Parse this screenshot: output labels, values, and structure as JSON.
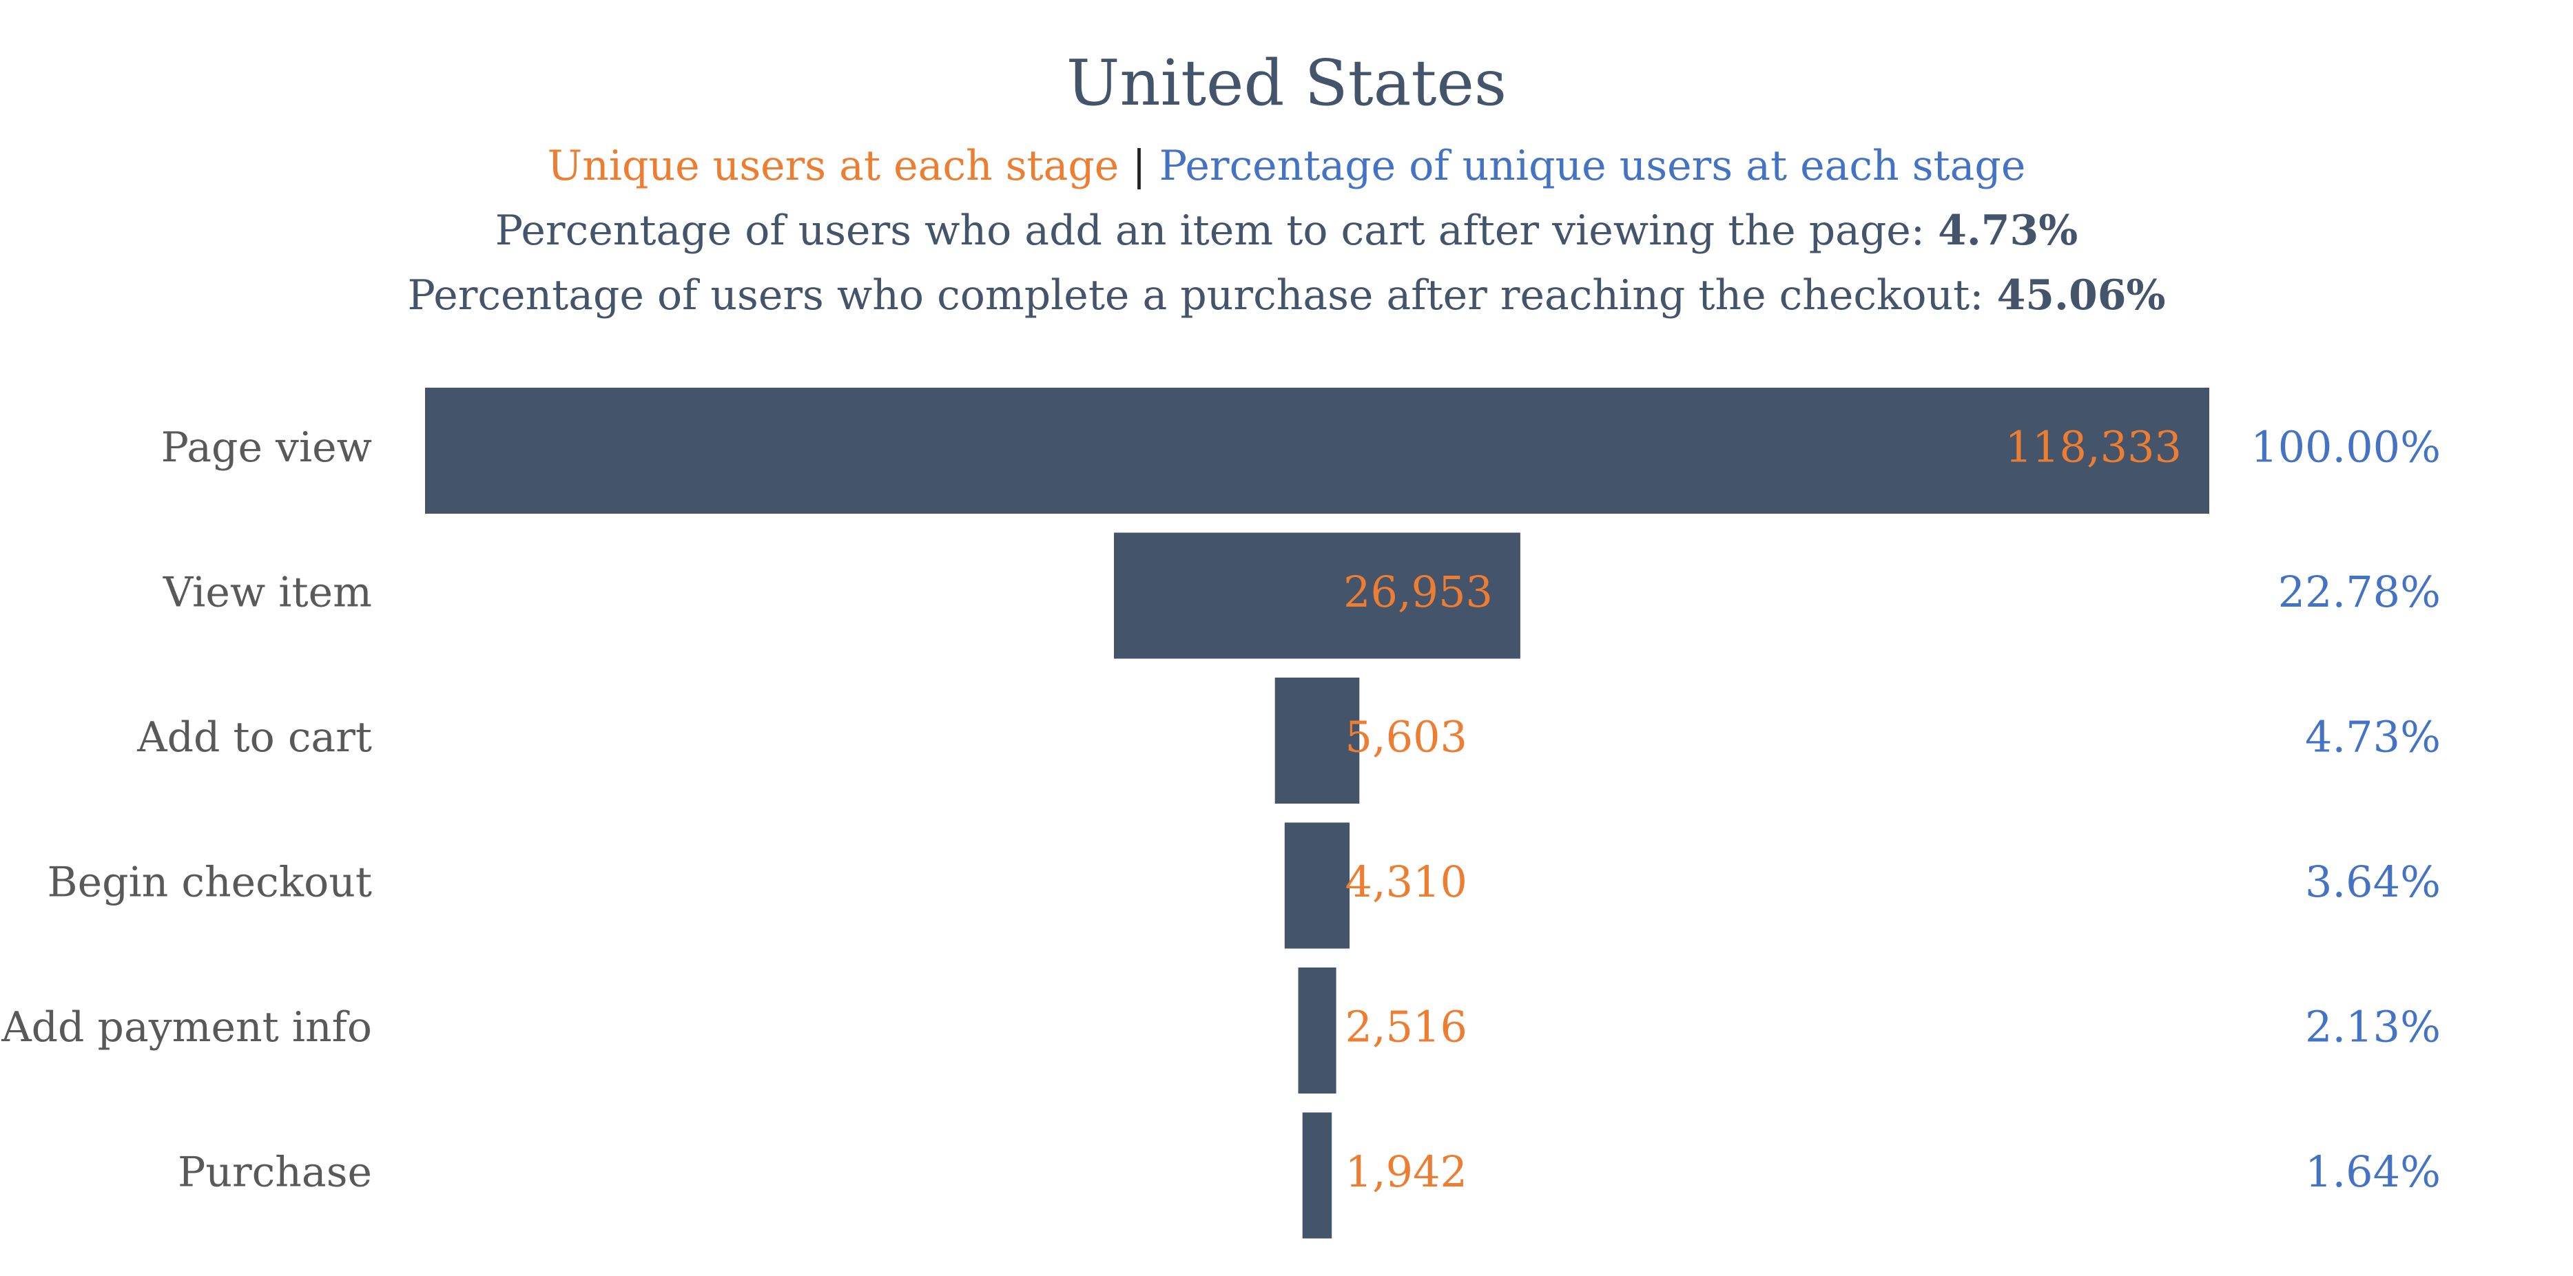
{
  "chart_data": {
    "type": "bar",
    "subtype": "funnel",
    "title": "United States",
    "legend": {
      "series_a": "Unique users at each stage",
      "separator": "|",
      "series_b": "Percentage of unique users at each stage"
    },
    "stats": [
      {
        "label": "Percentage of users who add an item to cart after viewing the page:",
        "value": "4.73%"
      },
      {
        "label": "Percentage of users who complete a purchase after reaching the checkout:",
        "value": "45.06%"
      }
    ],
    "categories": [
      "Page view",
      "View item",
      "Add to cart",
      "Begin checkout",
      "Add payment info",
      "Purchase"
    ],
    "values": [
      118333,
      26953,
      5603,
      4310,
      2516,
      1942
    ],
    "value_labels": [
      "118,333",
      "26,953",
      "5,603",
      "4,310",
      "2,516",
      "1,942"
    ],
    "percent_labels": [
      "100.00%",
      "22.78%",
      "4.73%",
      "3.64%",
      "2.13%",
      "1.64%"
    ],
    "colors": {
      "bar": "#44546a",
      "value_label": "#ed7d31",
      "percent_label": "#4472c4",
      "category_label": "#595959",
      "title": "#44546a"
    }
  }
}
